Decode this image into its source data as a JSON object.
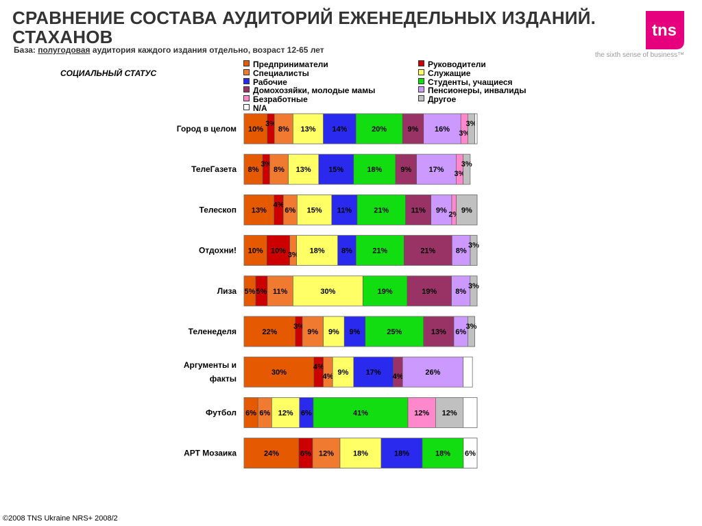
{
  "header": {
    "title": "СРАВНЕНИЕ СОСТАВА АУДИТОРИЙ ЕЖЕНЕДЕЛЬНЫХ ИЗДАНИЙ. СТАХАНОВ",
    "base_label": "База:",
    "base_underlined": "полугодовая",
    "base_rest": "аудитория каждого издания отдельно, возраст 12-65 лет"
  },
  "logo": {
    "text": "tns",
    "tagline": "the sixth sense of business™",
    "color": "#e6007e"
  },
  "footer": "©2008 TNS Ukraine  NRS+ 2008/2",
  "chart_data": {
    "type": "bar",
    "orientation": "horizontal-stacked-100",
    "subtitle": "СОЦИАЛЬНЫЙ СТАТУС",
    "legend_position": "top",
    "series": [
      {
        "name": "Предприниматели",
        "color": "#e55a00"
      },
      {
        "name": "Руководители",
        "color": "#cc0000"
      },
      {
        "name": "Специалисты",
        "color": "#f07a30"
      },
      {
        "name": "Служащие",
        "color": "#ffff66"
      },
      {
        "name": "Рабочие",
        "color": "#2a2aee"
      },
      {
        "name": "Студенты, учащиеся",
        "color": "#11dd11"
      },
      {
        "name": "Домохозяйки, молодые мамы",
        "color": "#993366"
      },
      {
        "name": "Пенсионеры, инвалиды",
        "color": "#cc99ff"
      },
      {
        "name": "Безработные",
        "color": "#ff88cc"
      },
      {
        "name": "Другое",
        "color": "#c0c0c0"
      },
      {
        "name": "N/A",
        "color": "#ffffff"
      }
    ],
    "categories": [
      {
        "name": "Город в целом",
        "values": [
          10,
          3,
          8,
          13,
          14,
          20,
          9,
          16,
          3,
          3,
          1
        ],
        "labels": [
          "10%",
          "3%",
          "8%",
          "13%",
          "14%",
          "20%",
          "9%",
          "16%",
          "3%",
          "3%",
          ""
        ]
      },
      {
        "name": "ТелеГазета",
        "values": [
          8,
          3,
          8,
          13,
          15,
          18,
          9,
          17,
          3,
          3,
          0
        ],
        "labels": [
          "8%",
          "3%",
          "8%",
          "13%",
          "15%",
          "18%",
          "9%",
          "17%",
          "3%",
          "3%",
          ""
        ]
      },
      {
        "name": "Телескоп",
        "values": [
          13,
          4,
          6,
          15,
          11,
          21,
          11,
          9,
          2,
          9,
          0
        ],
        "labels": [
          "13%",
          "4%",
          "6%",
          "15%",
          "11%",
          "21%",
          "11%",
          "9%",
          "2%",
          "9%",
          ""
        ]
      },
      {
        "name": "Отдохни!",
        "values": [
          10,
          10,
          3,
          18,
          8,
          21,
          21,
          8,
          0,
          3,
          0
        ],
        "labels": [
          "10%",
          "10%",
          "3%",
          "18%",
          "8%",
          "21%",
          "21%",
          "8%",
          "",
          "3%",
          ""
        ]
      },
      {
        "name": "Лиза",
        "values": [
          5,
          5,
          11,
          30,
          0,
          19,
          19,
          8,
          0,
          3,
          0
        ],
        "labels": [
          "5%",
          "5%",
          "11%",
          "30%",
          "",
          "19%",
          "19%",
          "8%",
          "",
          "3%",
          ""
        ]
      },
      {
        "name": "Теленеделя",
        "values": [
          22,
          3,
          9,
          9,
          9,
          25,
          13,
          6,
          0,
          3,
          0
        ],
        "labels": [
          "22%",
          "3%",
          "9%",
          "9%",
          "9%",
          "25%",
          "13%",
          "6%",
          "",
          "3%",
          ""
        ]
      },
      {
        "name": "Аргументы и факты",
        "lines": [
          "Аргументы и",
          "факты"
        ],
        "values": [
          30,
          4,
          4,
          9,
          17,
          0,
          4,
          26,
          0,
          0,
          4
        ],
        "labels": [
          "30%",
          "4%",
          "4%",
          "9%",
          "17%",
          "",
          "4%",
          "26%",
          "",
          "",
          ""
        ]
      },
      {
        "name": "Футбол",
        "values": [
          6,
          0,
          6,
          12,
          6,
          41,
          0,
          0,
          12,
          12,
          6
        ],
        "labels": [
          "6%",
          "",
          "6%",
          "12%",
          "6%",
          "41%",
          "",
          "",
          "12%",
          "12%",
          ""
        ]
      },
      {
        "name": "АРТ Мозаика",
        "values": [
          24,
          6,
          12,
          18,
          18,
          18,
          0,
          0,
          0,
          0,
          6
        ],
        "labels": [
          "24%",
          "6%",
          "12%",
          "18%",
          "18%",
          "18%",
          "",
          "",
          "",
          "",
          "6%"
        ]
      }
    ]
  }
}
